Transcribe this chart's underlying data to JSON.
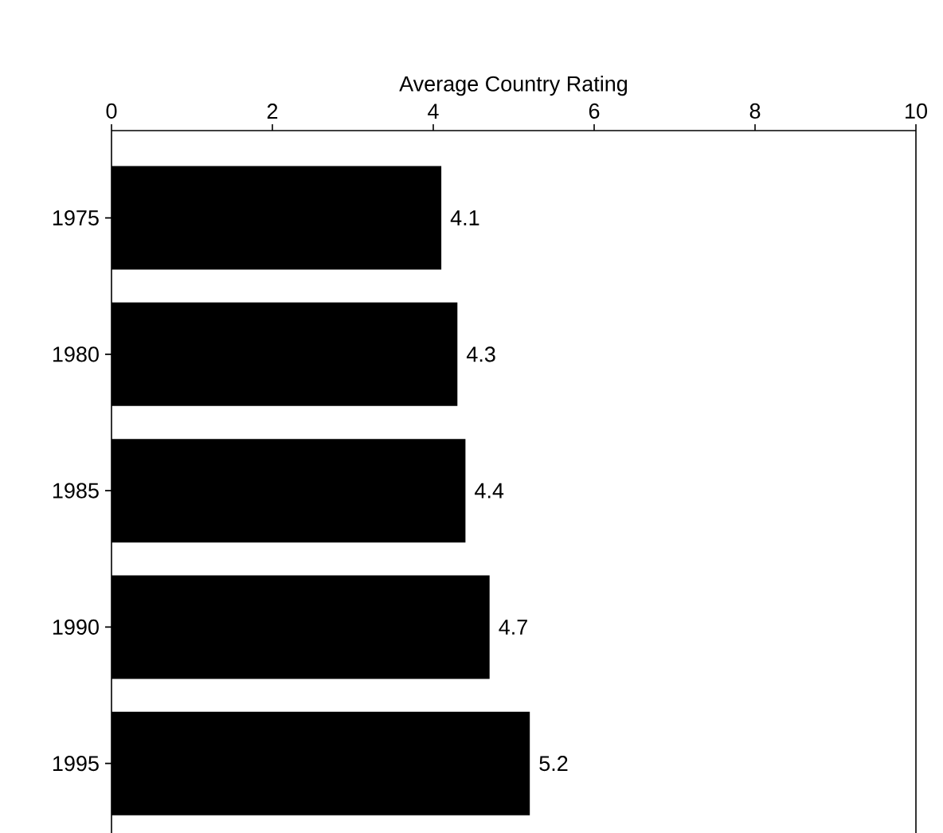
{
  "chart_data": {
    "type": "bar",
    "orientation": "horizontal",
    "xlabel": "Average Country Rating",
    "categories": [
      "1975",
      "1980",
      "1985",
      "1990",
      "1995"
    ],
    "values": [
      4.1,
      4.3,
      4.4,
      4.7,
      5.2
    ],
    "color": "#000000",
    "xlim": [
      0,
      10
    ],
    "xticks": [
      0,
      2,
      4,
      6,
      8,
      10
    ],
    "data_labels": true
  }
}
